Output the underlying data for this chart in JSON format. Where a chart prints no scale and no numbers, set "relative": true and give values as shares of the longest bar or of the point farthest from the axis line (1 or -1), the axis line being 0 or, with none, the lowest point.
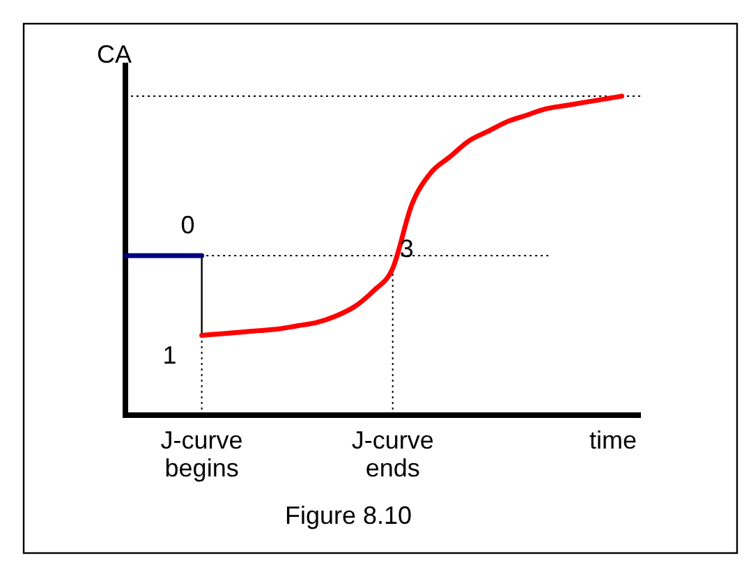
{
  "chart_data": {
    "type": "line",
    "relative": true,
    "ylabel": "CA",
    "xlabel": "time",
    "categories": [
      null,
      null,
      null,
      null,
      "J-curve begins",
      null,
      null,
      null,
      null,
      null,
      null,
      null,
      null,
      null,
      "J-curve ends",
      null,
      null,
      null,
      null,
      null,
      null,
      null,
      null,
      null,
      null,
      null,
      null,
      null
    ],
    "series": [
      {
        "color": "#000080",
        "values": [
          0.5,
          0.5,
          0.5,
          0.5,
          0.5,
          null,
          null,
          null,
          null,
          null,
          null,
          null,
          null,
          null,
          null,
          null,
          null,
          null,
          null,
          null,
          null,
          null,
          null,
          null,
          null,
          null,
          null,
          null
        ]
      },
      {
        "color": "#ff0000",
        "values": [
          null,
          null,
          null,
          null,
          0.25,
          0.255,
          0.26,
          0.265,
          0.27,
          0.28,
          0.29,
          0.31,
          0.34,
          0.39,
          0.46,
          0.66,
          0.76,
          0.81,
          0.86,
          0.89,
          0.92,
          0.94,
          0.96,
          0.97,
          0.98,
          0.99,
          1.0,
          null
        ]
      }
    ],
    "ref_lines": [
      {
        "axis": "y",
        "value": 1,
        "line_style": "dotted"
      },
      {
        "axis": "y",
        "value": 0.5,
        "line_style": "dotted"
      },
      {
        "axis": "x",
        "value": "J-curve begins",
        "line_style": "dotted"
      },
      {
        "axis": "x",
        "value": "J-curve ends",
        "line_style": "dotted"
      }
    ],
    "annotations": [
      {
        "text": "0",
        "x": "J-curve begins",
        "y": 0.5
      },
      {
        "text": "1",
        "x": "J-curve begins",
        "y": 0.25
      },
      {
        "text": "3",
        "x": "J-curve ends",
        "y": 0.46
      },
      "Figure 8.10"
    ]
  }
}
